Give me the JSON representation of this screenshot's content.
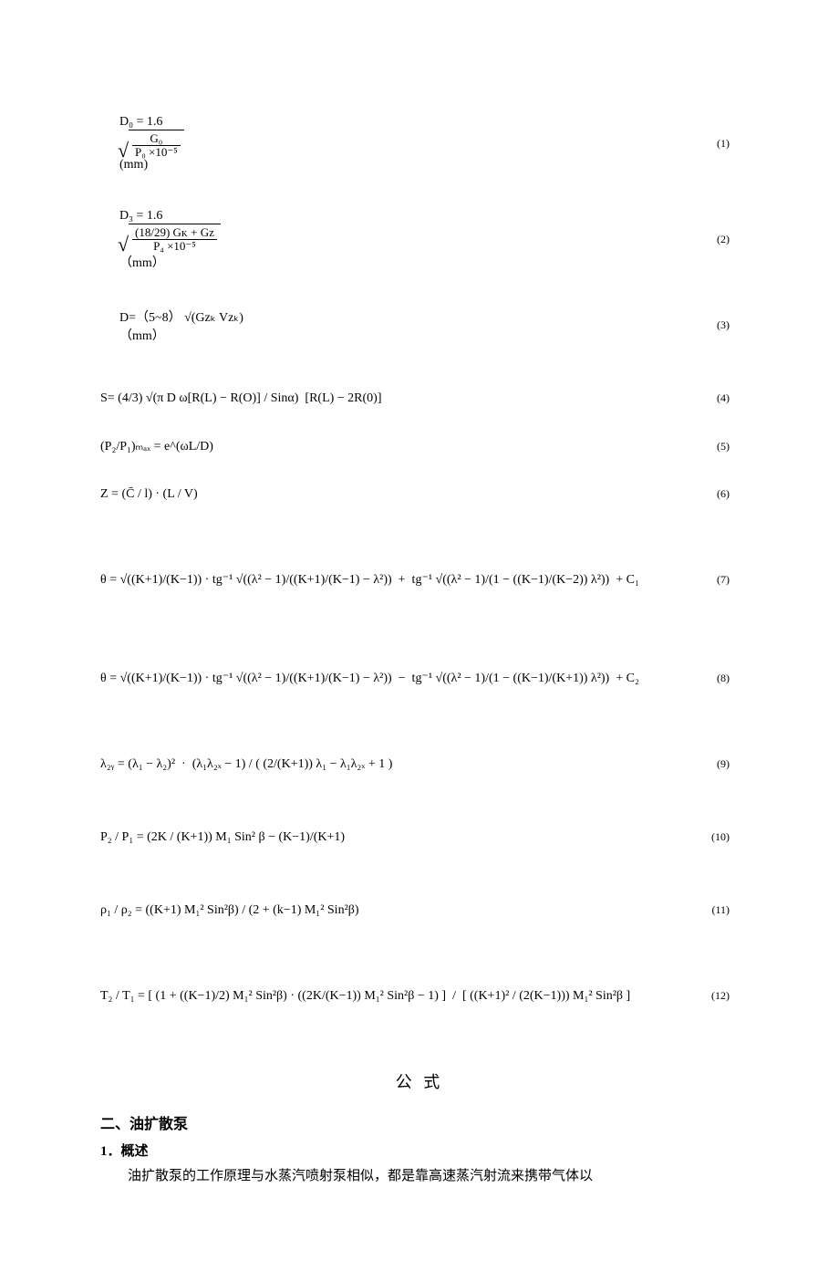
{
  "equations": [
    {
      "num": "(1)",
      "unit": "(mm)",
      "lhs": "D₀ = 1.6",
      "num_frac": "G₀",
      "den_frac": "P₀ ×10⁻⁵"
    },
    {
      "num": "(2)",
      "unit": "（mm）",
      "lhs": "D₃ = 1.6",
      "num_frac": "(18/29) Gᴋ + Gᴢ",
      "den_frac": "P₄ ×10⁻⁵"
    },
    {
      "num": "(3)",
      "unit": "（mm）",
      "text": "D=（5~8） √(Gᴢₖ Vᴢₖ)"
    },
    {
      "num": "(4)",
      "text": "S= (4/3) √(π D ω[R(L) − R(O)] / Sinα)  [R(L) − 2R(0)]"
    },
    {
      "num": "(5)",
      "text": "(P₂/P₁)ₘₐₓ = e^(ωL/D)"
    },
    {
      "num": "(6)",
      "text": "Z = (C̄ / l) · (L / V)"
    },
    {
      "num": "(7)",
      "text": "θ = √((K+1)/(K−1)) · tg⁻¹ √((λ² − 1)/((K+1)/(K−1) − λ²))  +  tg⁻¹ √((λ² − 1)/(1 − ((K−1)/(K−2)) λ²))  + C₁"
    },
    {
      "num": "(8)",
      "text": "θ = √((K+1)/(K−1)) · tg⁻¹ √((λ² − 1)/((K+1)/(K−1) − λ²))  −  tg⁻¹ √((λ² − 1)/(1 − ((K−1)/(K+1)) λ²))  + C₂"
    },
    {
      "num": "(9)",
      "text": "λ₂ᵧ = (λ₁ − λ₂)²  ·  (λ₁λ₂ₓ − 1) / ( (2/(K+1)) λ₁ − λ₁λ₂ₓ + 1 )"
    },
    {
      "num": "(10)",
      "text": "P₂ / P₁ = (2K / (K+1)) M₁ Sin² β − (K−1)/(K+1)"
    },
    {
      "num": "(11)",
      "text": "ρ₁ / ρ₂ = ((K+1) M₁² Sin²β) / (2 + (k−1) M₁² Sin²β)"
    },
    {
      "num": "(12)",
      "text": "T₂ / T₁ = [ (1 + ((K−1)/2) M₁² Sin²β) · ((2K/(K−1)) M₁² Sin²β − 1) ]  /  [ ((K+1)² / (2(K−1))) M₁² Sin²β ]"
    }
  ],
  "caption": "公 式",
  "section": "二、油扩散泵",
  "subsection": "1．概述",
  "paragraph": "油扩散泵的工作原理与水蒸汽喷射泵相似，都是靠高速蒸汽射流来携带气体以"
}
